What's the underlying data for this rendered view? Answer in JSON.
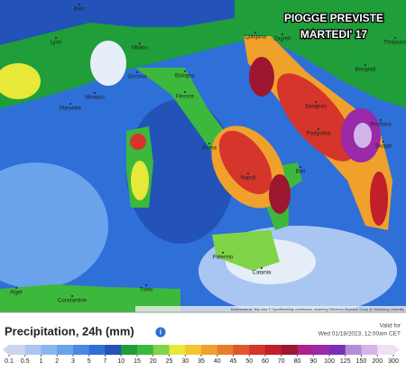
{
  "title": [
    "PIOGGE PREVISTE",
    "MARTEDI' 17"
  ],
  "cities": [
    "Bern",
    "Lyon",
    "Milano",
    "Ljubljana",
    "Zagreb",
    "Timişoara",
    "Beograd",
    "Genova",
    "Bologna",
    "Monaco",
    "Marseille",
    "Firenze",
    "Sarajevo",
    "Podgorica",
    "Prishtina",
    "Skopje",
    "Roma",
    "Napoli",
    "Bari",
    "Palermo",
    "Catania",
    "Alger",
    "Constantine",
    "Tunis"
  ],
  "attribution": "Kartenmaterial: Map data © OpenStreetMap contributors, rendering GIScience Research Group @ Heidelberg University",
  "legend": {
    "title": "Precipitation, 24h (mm)",
    "ticks": [
      0.1,
      0.5,
      1,
      2,
      3,
      5,
      7,
      10,
      15,
      20,
      25,
      30,
      35,
      40,
      45,
      50,
      60,
      70,
      80,
      90,
      100,
      125,
      150,
      200,
      300
    ],
    "colors": [
      "#c9d6ec",
      "#a9c6f2",
      "#8ab6f0",
      "#6aa2ec",
      "#4a88e4",
      "#2f6fd8",
      "#2352b8",
      "#1f9e3a",
      "#3cb83c",
      "#7fd447",
      "#e8e838",
      "#f2c531",
      "#f0a12c",
      "#ea7c2a",
      "#e25528",
      "#d5352a",
      "#c11f2a",
      "#9e1630",
      "#b01f8a",
      "#9a2aa8",
      "#7a2fb5",
      "#b58ad8",
      "#d4b5ea",
      "#eee0f5"
    ]
  },
  "valid": {
    "label": "Valid for",
    "date": "Wed 01/18/2023, 12:00am CET"
  }
}
